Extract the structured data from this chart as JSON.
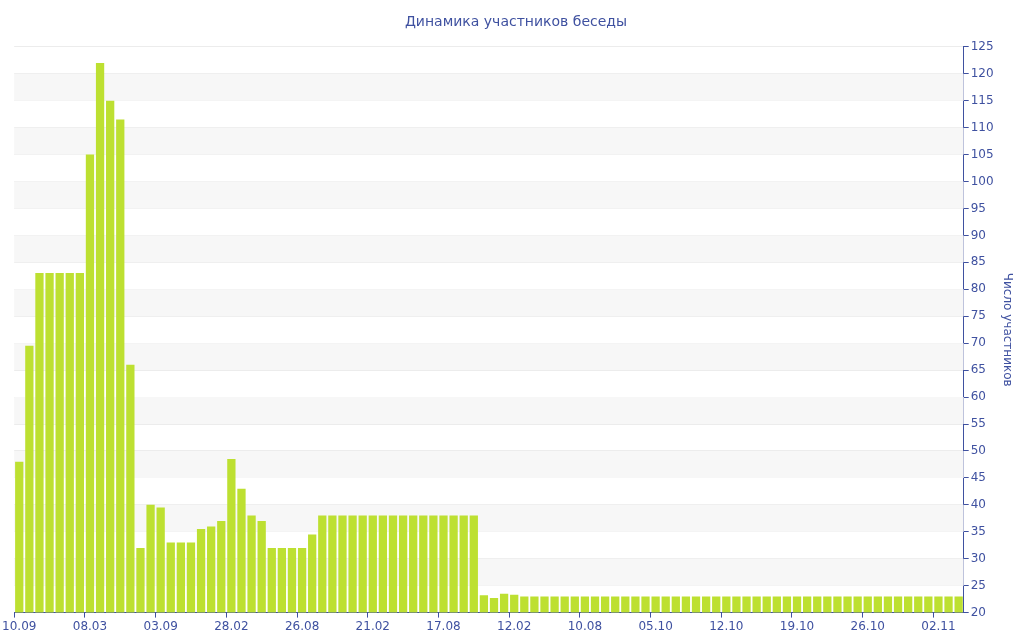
{
  "chart_data": {
    "type": "bar",
    "title": "Динамика участников беседы",
    "ylabel": "Число участников",
    "categories": [
      "10.09",
      null,
      null,
      null,
      null,
      null,
      null,
      "08.03",
      null,
      null,
      null,
      null,
      null,
      null,
      "03.09",
      null,
      null,
      null,
      null,
      null,
      null,
      "28.02",
      null,
      null,
      null,
      null,
      null,
      null,
      "26.08",
      null,
      null,
      null,
      null,
      null,
      null,
      "21.02",
      null,
      null,
      null,
      null,
      null,
      null,
      "17.08",
      null,
      null,
      null,
      null,
      null,
      null,
      "12.02",
      null,
      null,
      null,
      null,
      null,
      null,
      "10.08",
      null,
      null,
      null,
      null,
      null,
      null,
      "05.10",
      null,
      null,
      null,
      null,
      null,
      null,
      "12.10",
      null,
      null,
      null,
      null,
      null,
      null,
      "19.10",
      null,
      null,
      null,
      null,
      null,
      null,
      "26.10",
      null,
      null,
      null,
      null,
      null,
      null,
      "02.11",
      null,
      null
    ],
    "values": [
      48,
      69.5,
      83,
      83,
      83,
      83,
      83,
      105,
      122,
      115,
      111.5,
      66,
      32,
      40,
      39.5,
      33,
      33,
      33,
      35.5,
      36,
      37,
      48.5,
      43,
      38,
      37,
      32,
      32,
      32,
      32,
      34.5,
      38,
      38,
      38,
      38,
      38,
      38,
      38,
      38,
      38,
      38,
      38,
      38,
      38,
      38,
      38,
      38,
      23.2,
      22.7,
      23.5,
      23.3,
      23,
      23,
      23,
      23,
      23,
      23,
      23,
      23,
      23,
      23,
      23,
      23,
      23,
      23,
      23,
      23,
      23,
      23,
      23,
      23,
      23,
      23,
      23,
      23,
      23,
      23,
      23,
      23,
      23,
      23,
      23,
      23,
      23,
      23,
      23,
      23,
      23,
      23,
      23,
      23,
      23,
      23,
      23,
      23
    ],
    "color": "#bde031",
    "ylim": [
      20,
      125
    ],
    "yticks": [
      20,
      25,
      30,
      35,
      40,
      45,
      50,
      55,
      60,
      65,
      70,
      75,
      80,
      85,
      90,
      95,
      100,
      105,
      110,
      115,
      120,
      125
    ],
    "grid": "y",
    "legend": false
  }
}
